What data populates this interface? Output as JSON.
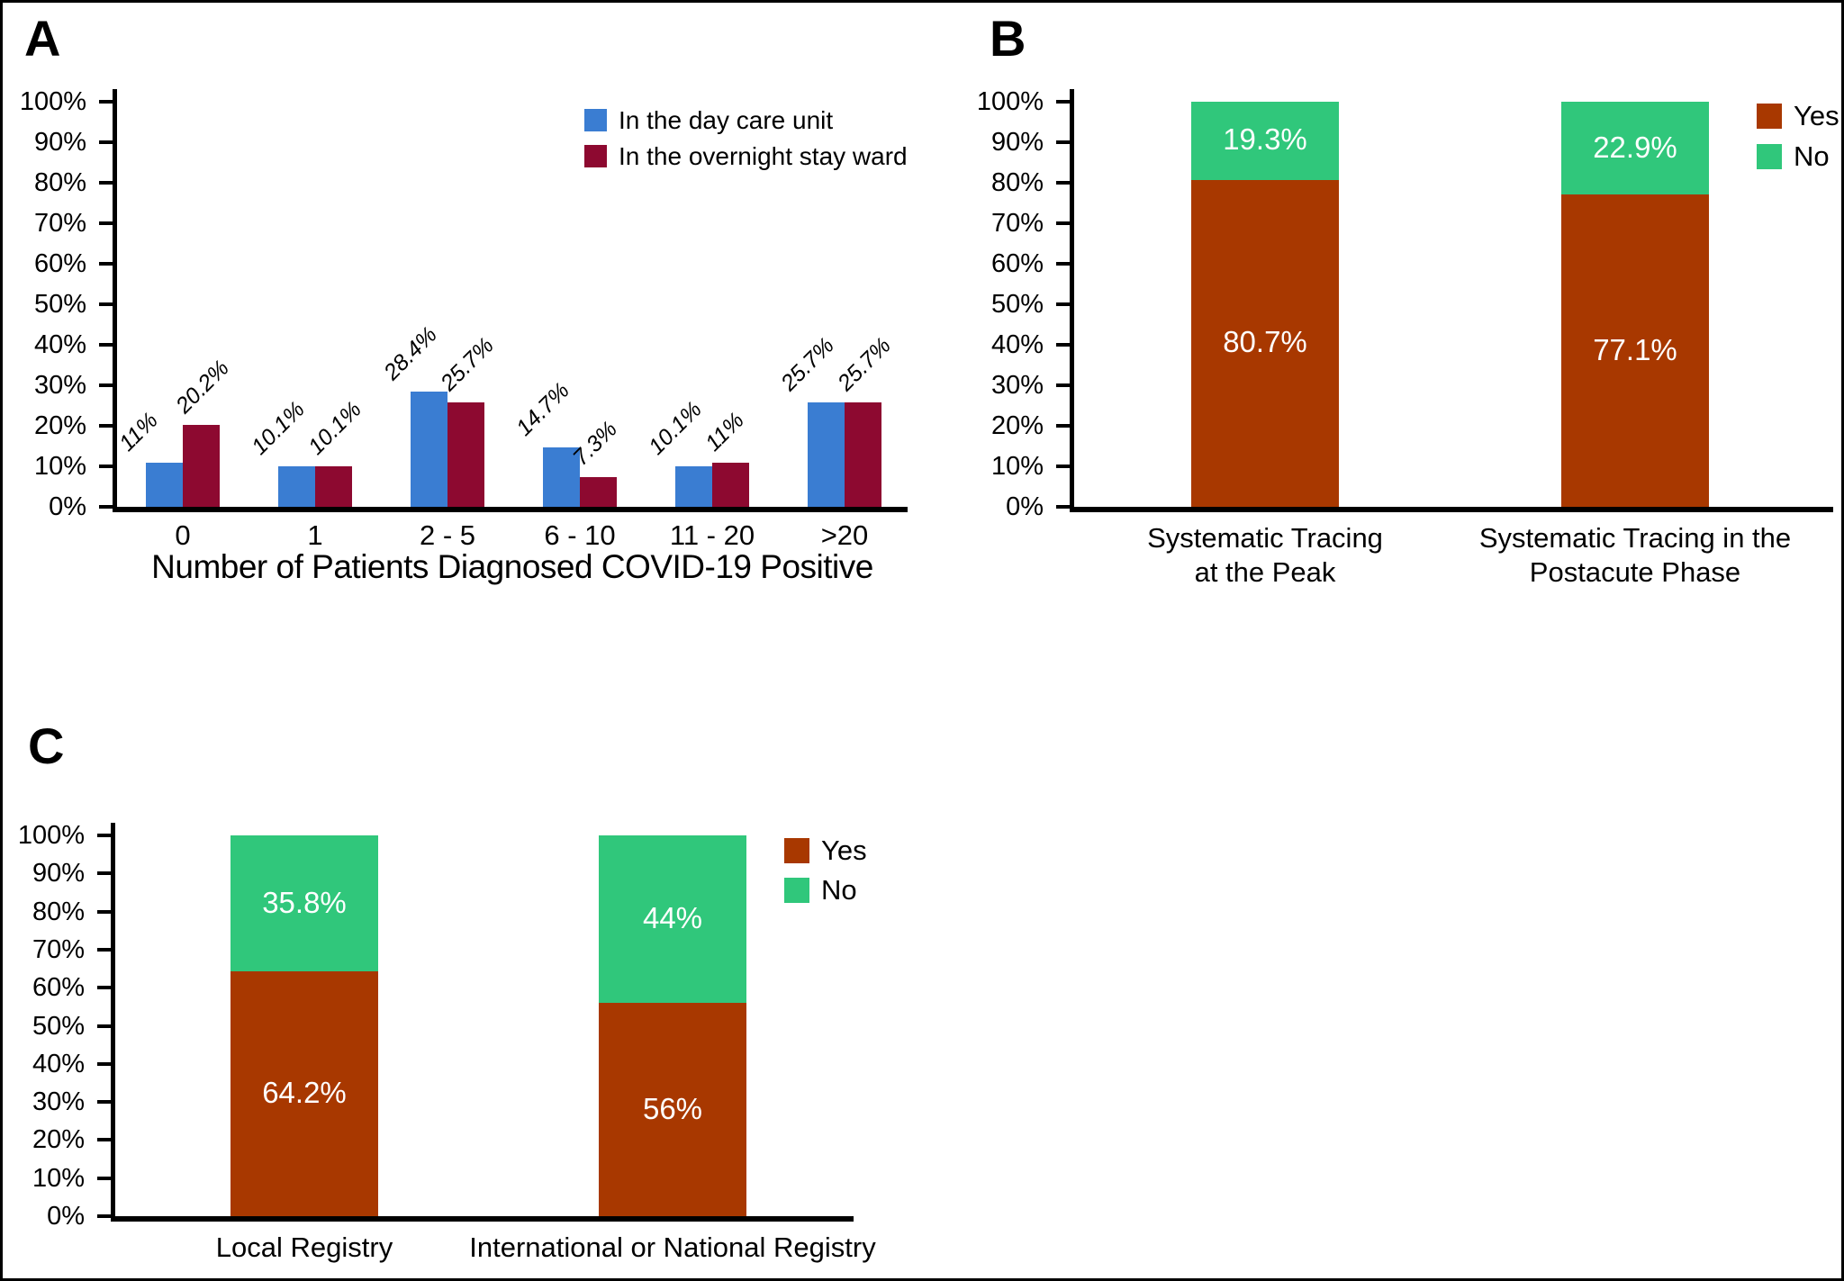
{
  "figure": {
    "background": "#ffffff",
    "border_color": "#000000",
    "text_color": "#000000",
    "panel_labels": [
      "A",
      "B",
      "C"
    ]
  },
  "chart_data": [
    {
      "type": "bar",
      "panel": "A",
      "panel_label": "A",
      "title": "",
      "xlabel": "Number of Patients Diagnosed COVID-19 Positive",
      "ylabel": "",
      "ylim": [
        0,
        100
      ],
      "grid": false,
      "legend_position": "top-right",
      "ytick_labels": [
        "0%",
        "10%",
        "20%",
        "30%",
        "40%",
        "50%",
        "60%",
        "70%",
        "80%",
        "90%",
        "100%"
      ],
      "categories": [
        "0",
        "1",
        "2 - 5",
        "6 - 10",
        "11 - 20",
        ">20"
      ],
      "series": [
        {
          "name": "In the day care unit",
          "color": "#3A7DD2",
          "values": [
            11,
            10.1,
            28.4,
            14.7,
            10.1,
            25.7
          ],
          "labels": [
            "11%",
            "10.1%",
            "28.4%",
            "14.7%",
            "10.1%",
            "25.7%"
          ]
        },
        {
          "name": "In the overnight stay ward",
          "color": "#8D0930",
          "values": [
            20.2,
            10.1,
            25.7,
            7.3,
            11,
            25.7
          ],
          "labels": [
            "20.2%",
            "10.1%",
            "25.7%",
            "7.3%",
            "11%",
            "25.7%"
          ]
        }
      ]
    },
    {
      "type": "stacked-bar",
      "panel": "B",
      "panel_label": "B",
      "title": "",
      "xlabel": "",
      "ylabel": "",
      "ylim": [
        0,
        100
      ],
      "grid": false,
      "legend_position": "top-right",
      "ytick_labels": [
        "0%",
        "10%",
        "20%",
        "30%",
        "40%",
        "50%",
        "60%",
        "70%",
        "80%",
        "90%",
        "100%"
      ],
      "categories": [
        "Systematic Tracing\nat the Peak",
        "Systematic Tracing in the\nPostacute Phase"
      ],
      "series": [
        {
          "name": "Yes",
          "color": "#A83800",
          "values": [
            80.7,
            77.1
          ],
          "labels": [
            "80.7%",
            "77.1%"
          ]
        },
        {
          "name": "No",
          "color": "#30C77B",
          "values": [
            19.3,
            22.9
          ],
          "labels": [
            "19.3%",
            "22.9%"
          ]
        }
      ]
    },
    {
      "type": "stacked-bar",
      "panel": "C",
      "panel_label": "C",
      "title": "",
      "xlabel": "",
      "ylabel": "",
      "ylim": [
        0,
        100
      ],
      "grid": false,
      "legend_position": "top-right",
      "ytick_labels": [
        "0%",
        "10%",
        "20%",
        "30%",
        "40%",
        "50%",
        "60%",
        "70%",
        "80%",
        "90%",
        "100%"
      ],
      "categories": [
        "Local Registry",
        "International or National Registry"
      ],
      "series": [
        {
          "name": "Yes",
          "color": "#A83800",
          "values": [
            64.2,
            56
          ],
          "labels": [
            "64.2%",
            "56%"
          ]
        },
        {
          "name": "No",
          "color": "#30C77B",
          "values": [
            35.8,
            44
          ],
          "labels": [
            "35.8%",
            "44%"
          ]
        }
      ]
    }
  ]
}
